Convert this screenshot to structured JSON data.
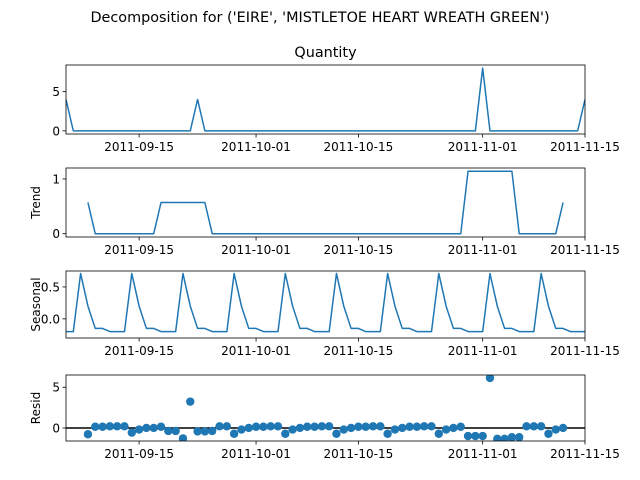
{
  "figure": {
    "suptitle": "Decomposition for ('EIRE', 'MISTLETOE HEART WREATH GREEN')",
    "line_color": "#1f77b4"
  },
  "chart_data": [
    {
      "name": "observed",
      "type": "line",
      "title": "Quantity",
      "ylabel": "",
      "xlim": [
        "2011-09-05",
        "2011-11-15"
      ],
      "ylim": [
        -0.4,
        8.4
      ],
      "yticks": [
        0,
        5
      ],
      "xticks": [
        "2011-09-15",
        "2011-10-01",
        "2011-10-15",
        "2011-11-01",
        "2011-11-15"
      ],
      "x": [
        "2011-09-05",
        "2011-09-06",
        "2011-09-07",
        "2011-09-08",
        "2011-09-09",
        "2011-09-10",
        "2011-09-11",
        "2011-09-12",
        "2011-09-13",
        "2011-09-14",
        "2011-09-15",
        "2011-09-16",
        "2011-09-17",
        "2011-09-18",
        "2011-09-19",
        "2011-09-20",
        "2011-09-21",
        "2011-09-22",
        "2011-09-23",
        "2011-09-24",
        "2011-09-25",
        "2011-09-26",
        "2011-09-27",
        "2011-09-28",
        "2011-09-29",
        "2011-09-30",
        "2011-10-01",
        "2011-10-02",
        "2011-10-03",
        "2011-10-04",
        "2011-10-05",
        "2011-10-06",
        "2011-10-07",
        "2011-10-08",
        "2011-10-09",
        "2011-10-10",
        "2011-10-11",
        "2011-10-12",
        "2011-10-13",
        "2011-10-14",
        "2011-10-15",
        "2011-10-16",
        "2011-10-17",
        "2011-10-18",
        "2011-10-19",
        "2011-10-20",
        "2011-10-21",
        "2011-10-22",
        "2011-10-23",
        "2011-10-24",
        "2011-10-25",
        "2011-10-26",
        "2011-10-27",
        "2011-10-28",
        "2011-10-29",
        "2011-10-30",
        "2011-10-31",
        "2011-11-01",
        "2011-11-02",
        "2011-11-03",
        "2011-11-04",
        "2011-11-05",
        "2011-11-06",
        "2011-11-07",
        "2011-11-08",
        "2011-11-09",
        "2011-11-10",
        "2011-11-11",
        "2011-11-12",
        "2011-11-13",
        "2011-11-14",
        "2011-11-15"
      ],
      "values": [
        4,
        0,
        0,
        0,
        0,
        0,
        0,
        0,
        0,
        0,
        0,
        0,
        0,
        0,
        0,
        0,
        0,
        0,
        4,
        0,
        0,
        0,
        0,
        0,
        0,
        0,
        0,
        0,
        0,
        0,
        0,
        0,
        0,
        0,
        0,
        0,
        0,
        0,
        0,
        0,
        0,
        0,
        0,
        0,
        0,
        0,
        0,
        0,
        0,
        0,
        0,
        0,
        0,
        0,
        0,
        0,
        0,
        8,
        0,
        0,
        0,
        0,
        0,
        0,
        0,
        0,
        0,
        0,
        0,
        0,
        0,
        4
      ]
    },
    {
      "name": "trend",
      "type": "line",
      "title": "",
      "ylabel": "Trend",
      "xlim": [
        "2011-09-05",
        "2011-11-15"
      ],
      "ylim": [
        -0.06,
        1.2
      ],
      "yticks": [
        0,
        1
      ],
      "xticks": [
        "2011-09-15",
        "2011-10-01",
        "2011-10-15",
        "2011-11-01",
        "2011-11-15"
      ],
      "x": [
        "2011-09-08",
        "2011-09-09",
        "2011-09-10",
        "2011-09-11",
        "2011-09-12",
        "2011-09-13",
        "2011-09-14",
        "2011-09-15",
        "2011-09-16",
        "2011-09-17",
        "2011-09-18",
        "2011-09-19",
        "2011-09-20",
        "2011-09-21",
        "2011-09-22",
        "2011-09-23",
        "2011-09-24",
        "2011-09-25",
        "2011-09-26",
        "2011-09-27",
        "2011-09-28",
        "2011-09-29",
        "2011-09-30",
        "2011-10-01",
        "2011-10-02",
        "2011-10-03",
        "2011-10-04",
        "2011-10-05",
        "2011-10-06",
        "2011-10-07",
        "2011-10-08",
        "2011-10-09",
        "2011-10-10",
        "2011-10-11",
        "2011-10-12",
        "2011-10-13",
        "2011-10-14",
        "2011-10-15",
        "2011-10-16",
        "2011-10-17",
        "2011-10-18",
        "2011-10-19",
        "2011-10-20",
        "2011-10-21",
        "2011-10-22",
        "2011-10-23",
        "2011-10-24",
        "2011-10-25",
        "2011-10-26",
        "2011-10-27",
        "2011-10-28",
        "2011-10-29",
        "2011-10-30",
        "2011-10-31",
        "2011-11-01",
        "2011-11-02",
        "2011-11-03",
        "2011-11-04",
        "2011-11-05",
        "2011-11-06",
        "2011-11-07",
        "2011-11-08",
        "2011-11-09",
        "2011-11-10",
        "2011-11-11",
        "2011-11-12"
      ],
      "values": [
        0.57,
        0,
        0,
        0,
        0,
        0,
        0,
        0,
        0,
        0,
        0.57,
        0.57,
        0.57,
        0.57,
        0.57,
        0.57,
        0.57,
        0,
        0,
        0,
        0,
        0,
        0,
        0,
        0,
        0,
        0,
        0,
        0,
        0,
        0,
        0,
        0,
        0,
        0,
        0,
        0,
        0,
        0,
        0,
        0,
        0,
        0,
        0,
        0,
        0,
        0,
        0,
        0,
        0,
        0,
        0,
        1.14,
        1.14,
        1.14,
        1.14,
        1.14,
        1.14,
        1.14,
        0,
        0,
        0,
        0,
        0,
        0,
        0.57
      ]
    },
    {
      "name": "seasonal",
      "type": "line",
      "title": "",
      "ylabel": "Seasonal",
      "xlim": [
        "2011-09-05",
        "2011-11-15"
      ],
      "ylim": [
        -0.3,
        0.75
      ],
      "yticks": [
        0.0,
        0.5
      ],
      "ytick_labels": [
        "0.0",
        "0.5"
      ],
      "xticks": [
        "2011-09-15",
        "2011-10-01",
        "2011-10-15",
        "2011-11-01",
        "2011-11-15"
      ],
      "x_start": "2011-09-05",
      "period_values": [
        -0.2,
        -0.2,
        0.71,
        0.2,
        -0.15,
        -0.15,
        -0.2
      ],
      "count": 72
    },
    {
      "name": "resid",
      "type": "scatter",
      "title": "",
      "ylabel": "Resid",
      "xlim": [
        "2011-09-05",
        "2011-11-15"
      ],
      "ylim": [
        -1.6,
        6.5
      ],
      "yticks": [
        0,
        5
      ],
      "xticks": [
        "2011-09-15",
        "2011-10-01",
        "2011-10-15",
        "2011-11-01",
        "2011-11-15"
      ],
      "zero_line": true,
      "x": [
        "2011-09-08",
        "2011-09-09",
        "2011-09-10",
        "2011-09-11",
        "2011-09-12",
        "2011-09-13",
        "2011-09-14",
        "2011-09-15",
        "2011-09-16",
        "2011-09-17",
        "2011-09-18",
        "2011-09-19",
        "2011-09-20",
        "2011-09-21",
        "2011-09-22",
        "2011-09-23",
        "2011-09-24",
        "2011-09-25",
        "2011-09-26",
        "2011-09-27",
        "2011-09-28",
        "2011-09-29",
        "2011-09-30",
        "2011-10-01",
        "2011-10-02",
        "2011-10-03",
        "2011-10-04",
        "2011-10-05",
        "2011-10-06",
        "2011-10-07",
        "2011-10-08",
        "2011-10-09",
        "2011-10-10",
        "2011-10-11",
        "2011-10-12",
        "2011-10-13",
        "2011-10-14",
        "2011-10-15",
        "2011-10-16",
        "2011-10-17",
        "2011-10-18",
        "2011-10-19",
        "2011-10-20",
        "2011-10-21",
        "2011-10-22",
        "2011-10-23",
        "2011-10-24",
        "2011-10-25",
        "2011-10-26",
        "2011-10-27",
        "2011-10-28",
        "2011-10-29",
        "2011-10-30",
        "2011-10-31",
        "2011-11-01",
        "2011-11-02",
        "2011-11-03",
        "2011-11-04",
        "2011-11-05",
        "2011-11-06",
        "2011-11-07",
        "2011-11-08",
        "2011-11-09",
        "2011-11-10",
        "2011-11-11",
        "2011-11-12"
      ],
      "values": [
        -0.77,
        0.15,
        0.15,
        0.2,
        0.2,
        0.2,
        -0.57,
        -0.2,
        0.0,
        0.0,
        0.15,
        -0.37,
        -0.37,
        -1.28,
        3.23,
        -0.42,
        -0.42,
        -0.37,
        0.2,
        0.2,
        -0.71,
        -0.2,
        0.0,
        0.15,
        0.15,
        0.2,
        0.2,
        -0.71,
        -0.2,
        0.0,
        0.15,
        0.15,
        0.2,
        0.2,
        -0.71,
        -0.2,
        0.0,
        0.15,
        0.15,
        0.2,
        0.2,
        -0.71,
        -0.2,
        0.0,
        0.15,
        0.15,
        0.2,
        0.2,
        -0.71,
        -0.2,
        0.0,
        0.15,
        -0.99,
        -0.99,
        -0.99,
        6.14,
        -1.34,
        -1.34,
        -1.14,
        -1.14,
        0.2,
        0.2,
        0.2,
        -0.71,
        -0.2,
        0.0
      ]
    }
  ]
}
